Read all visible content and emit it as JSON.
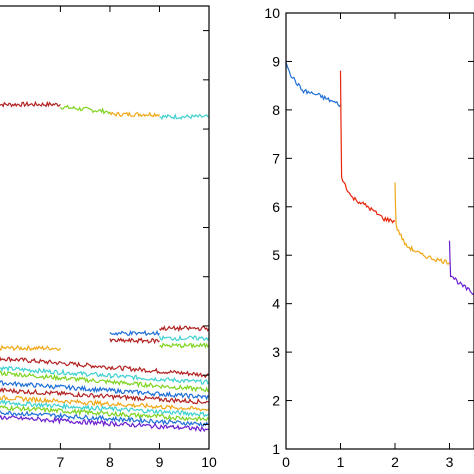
{
  "chart_data": [
    {
      "type": "line",
      "title": "",
      "xlabel": "",
      "ylabel": "",
      "xlim": [
        5.7,
        10
      ],
      "x_ticks": [
        7,
        8,
        9,
        10
      ],
      "x_tick_labels": [
        "7",
        "8",
        "9",
        "10"
      ],
      "y_ticks_count": 9,
      "grid": false,
      "legend": "none",
      "series": [
        {
          "color": "#b22222",
          "x": [
            5.7,
            7.0
          ],
          "y": [
            8.0,
            8.0
          ]
        },
        {
          "color": "#7fd321",
          "x": [
            7.0,
            8.0
          ],
          "y": [
            7.95,
            7.85
          ]
        },
        {
          "color": "#f0a818",
          "x": [
            8.0,
            9.0
          ],
          "y": [
            7.8,
            7.8
          ]
        },
        {
          "color": "#3fd0d0",
          "x": [
            9.0,
            10.0
          ],
          "y": [
            7.75,
            7.75
          ]
        },
        {
          "color": "#f0a818",
          "x": [
            5.7,
            7.0
          ],
          "y": [
            3.05,
            3.05
          ]
        },
        {
          "color": "#b22222",
          "x": [
            5.7,
            10.0
          ],
          "y": [
            2.85,
            2.5
          ]
        },
        {
          "color": "#3fd0d0",
          "x": [
            5.7,
            10.0
          ],
          "y": [
            2.65,
            2.35
          ]
        },
        {
          "color": "#7fd321",
          "x": [
            5.7,
            10.0
          ],
          "y": [
            2.55,
            2.2
          ]
        },
        {
          "color": "#1f6fd6",
          "x": [
            5.7,
            10.0
          ],
          "y": [
            2.35,
            2.05
          ]
        },
        {
          "color": "#b22222",
          "x": [
            5.7,
            10.0
          ],
          "y": [
            2.2,
            1.95
          ]
        },
        {
          "color": "#f0a818",
          "x": [
            5.7,
            10.0
          ],
          "y": [
            2.05,
            1.8
          ]
        },
        {
          "color": "#3fd0d0",
          "x": [
            5.7,
            10.0
          ],
          "y": [
            1.95,
            1.7
          ]
        },
        {
          "color": "#7fd321",
          "x": [
            5.7,
            10.0
          ],
          "y": [
            1.85,
            1.6
          ]
        },
        {
          "color": "#1f6fd6",
          "x": [
            5.7,
            10.0
          ],
          "y": [
            1.75,
            1.5
          ]
        },
        {
          "color": "#6a1fcf",
          "x": [
            5.7,
            10.0
          ],
          "y": [
            1.65,
            1.4
          ]
        },
        {
          "color": "#b22222",
          "x": [
            8.0,
            9.0
          ],
          "y": [
            3.2,
            3.2
          ]
        },
        {
          "color": "#1f6fd6",
          "x": [
            8.0,
            9.0
          ],
          "y": [
            3.35,
            3.35
          ]
        },
        {
          "color": "#b22222",
          "x": [
            9.0,
            10.0
          ],
          "y": [
            3.45,
            3.45
          ]
        },
        {
          "color": "#3fd0d0",
          "x": [
            9.0,
            10.0
          ],
          "y": [
            3.25,
            3.25
          ]
        },
        {
          "color": "#7fd321",
          "x": [
            9.0,
            10.0
          ],
          "y": [
            3.1,
            3.1
          ]
        }
      ]
    },
    {
      "type": "line",
      "title": "",
      "xlabel": "",
      "ylabel": "",
      "xlim": [
        0,
        3.45
      ],
      "ylim": [
        1,
        10
      ],
      "x_ticks": [
        0,
        1,
        2,
        3
      ],
      "x_tick_labels": [
        "0",
        "1",
        "2",
        "3"
      ],
      "y_ticks": [
        1,
        2,
        3,
        4,
        5,
        6,
        7,
        8,
        9,
        10
      ],
      "y_tick_labels": [
        "1",
        "2",
        "3",
        "4",
        "5",
        "6",
        "7",
        "8",
        "9",
        "10"
      ],
      "grid": false,
      "legend": "none",
      "series": [
        {
          "color": "#1f6fd6",
          "x": [
            0.0,
            0.1,
            0.3,
            0.6,
            1.0
          ],
          "y": [
            9.0,
            8.7,
            8.4,
            8.3,
            8.1
          ]
        },
        {
          "color": "#e8240c",
          "x": [
            1.0,
            1.02,
            1.2,
            1.5,
            1.8,
            2.0
          ],
          "y": [
            8.8,
            6.6,
            6.2,
            6.0,
            5.75,
            5.7
          ]
        },
        {
          "color": "#f0a818",
          "x": [
            2.0,
            2.02,
            2.2,
            2.5,
            2.8,
            3.0
          ],
          "y": [
            6.5,
            5.6,
            5.2,
            5.0,
            4.9,
            4.85
          ]
        },
        {
          "color": "#6a1fcf",
          "x": [
            3.0,
            3.02,
            3.2,
            3.45
          ],
          "y": [
            5.3,
            4.6,
            4.4,
            4.2
          ]
        }
      ]
    }
  ]
}
